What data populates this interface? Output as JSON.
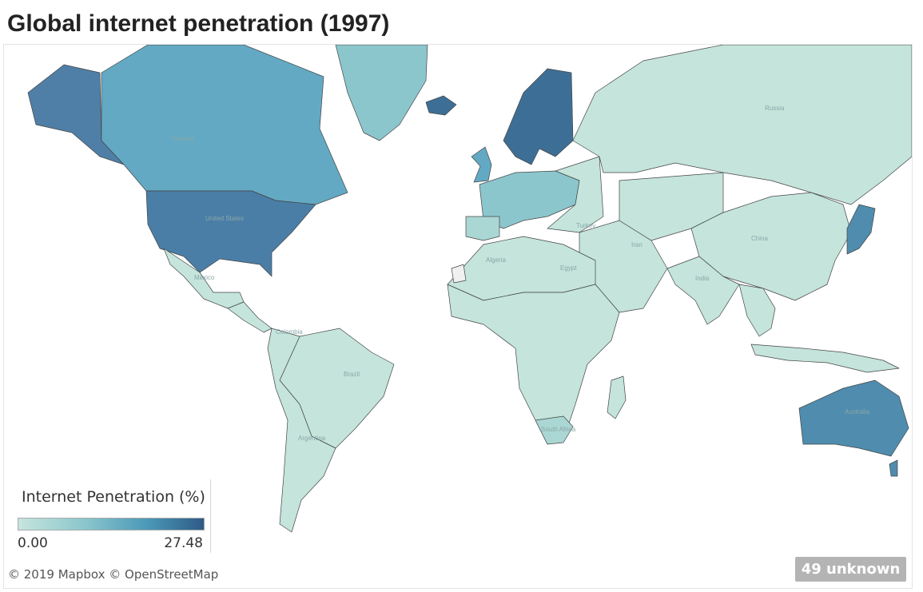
{
  "title": "Global internet penetration (1997)",
  "legend": {
    "title": "Internet Penetration (%)",
    "min_label": "0.00",
    "max_label": "27.48",
    "color_low": "#c6e5dd",
    "color_high": "#2f5a86"
  },
  "attribution": "© 2019 Mapbox © OpenStreetMap",
  "unknown_badge": "49 unknown",
  "map_labels": {
    "canada": "Canada",
    "united_states": "United States",
    "russia": "Russia",
    "china": "China",
    "india": "India",
    "brazil": "Brazil",
    "algeria": "Algeria",
    "egypt": "Egypt",
    "australia": "Australia",
    "argentina": "Argentina",
    "iran": "Iran",
    "turkey": "Turkey",
    "colombia": "Colombia",
    "mexico": "Mexico",
    "south_africa": "South Africa"
  },
  "palette": {
    "very_low": "#c4e4dc",
    "low": "#aad7d3",
    "mid": "#8cc6cd",
    "mid_high": "#63a9c3",
    "high": "#4f8cae",
    "very_high": "#3d6f96",
    "unknown": "#f0f0f0"
  }
}
